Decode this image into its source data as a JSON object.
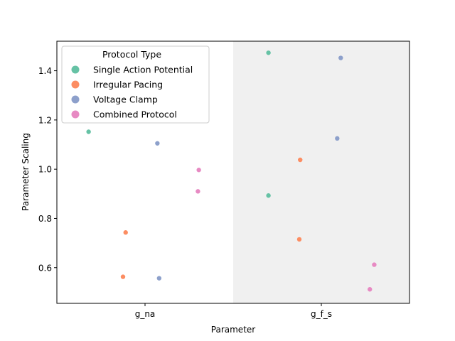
{
  "chart_data": {
    "type": "scatter",
    "title": "",
    "xlabel": "Parameter",
    "ylabel": "Parameter Scaling",
    "categories": [
      "g_na",
      "g_f_s"
    ],
    "ylim": [
      0.455,
      1.52
    ],
    "yticks": [
      0.6,
      0.8,
      1.0,
      1.2,
      1.4
    ],
    "ytick_labels": [
      "0.6",
      "0.8",
      "1.0",
      "1.2",
      "1.4"
    ],
    "grid": false,
    "shaded_category": "g_f_s",
    "shade_color": "#f0f0f0",
    "legend": {
      "title": "Protocol Type",
      "placement": "upper-left"
    },
    "series": [
      {
        "name": "Single Action Potential",
        "color": "#66c2a5",
        "points": [
          {
            "category": "g_na",
            "offset": -0.32,
            "y": 1.152
          },
          {
            "category": "g_f_s",
            "offset": -0.3,
            "y": 1.473
          },
          {
            "category": "g_f_s",
            "offset": -0.3,
            "y": 0.893
          }
        ]
      },
      {
        "name": "Irregular Pacing",
        "color": "#fc8d62",
        "points": [
          {
            "category": "g_na",
            "offset": -0.11,
            "y": 0.743
          },
          {
            "category": "g_na",
            "offset": -0.125,
            "y": 0.563
          },
          {
            "category": "g_f_s",
            "offset": -0.12,
            "y": 1.038
          },
          {
            "category": "g_f_s",
            "offset": -0.125,
            "y": 0.715
          }
        ]
      },
      {
        "name": "Voltage Clamp",
        "color": "#8da0cb",
        "points": [
          {
            "category": "g_na",
            "offset": 0.07,
            "y": 1.105
          },
          {
            "category": "g_na",
            "offset": 0.08,
            "y": 0.557
          },
          {
            "category": "g_f_s",
            "offset": 0.11,
            "y": 1.452
          },
          {
            "category": "g_f_s",
            "offset": 0.09,
            "y": 1.125
          }
        ]
      },
      {
        "name": "Combined Protocol",
        "color": "#e78ac3",
        "points": [
          {
            "category": "g_na",
            "offset": 0.305,
            "y": 0.997
          },
          {
            "category": "g_na",
            "offset": 0.3,
            "y": 0.91
          },
          {
            "category": "g_f_s",
            "offset": 0.3,
            "y": 0.612
          },
          {
            "category": "g_f_s",
            "offset": 0.275,
            "y": 0.512
          }
        ]
      }
    ]
  }
}
